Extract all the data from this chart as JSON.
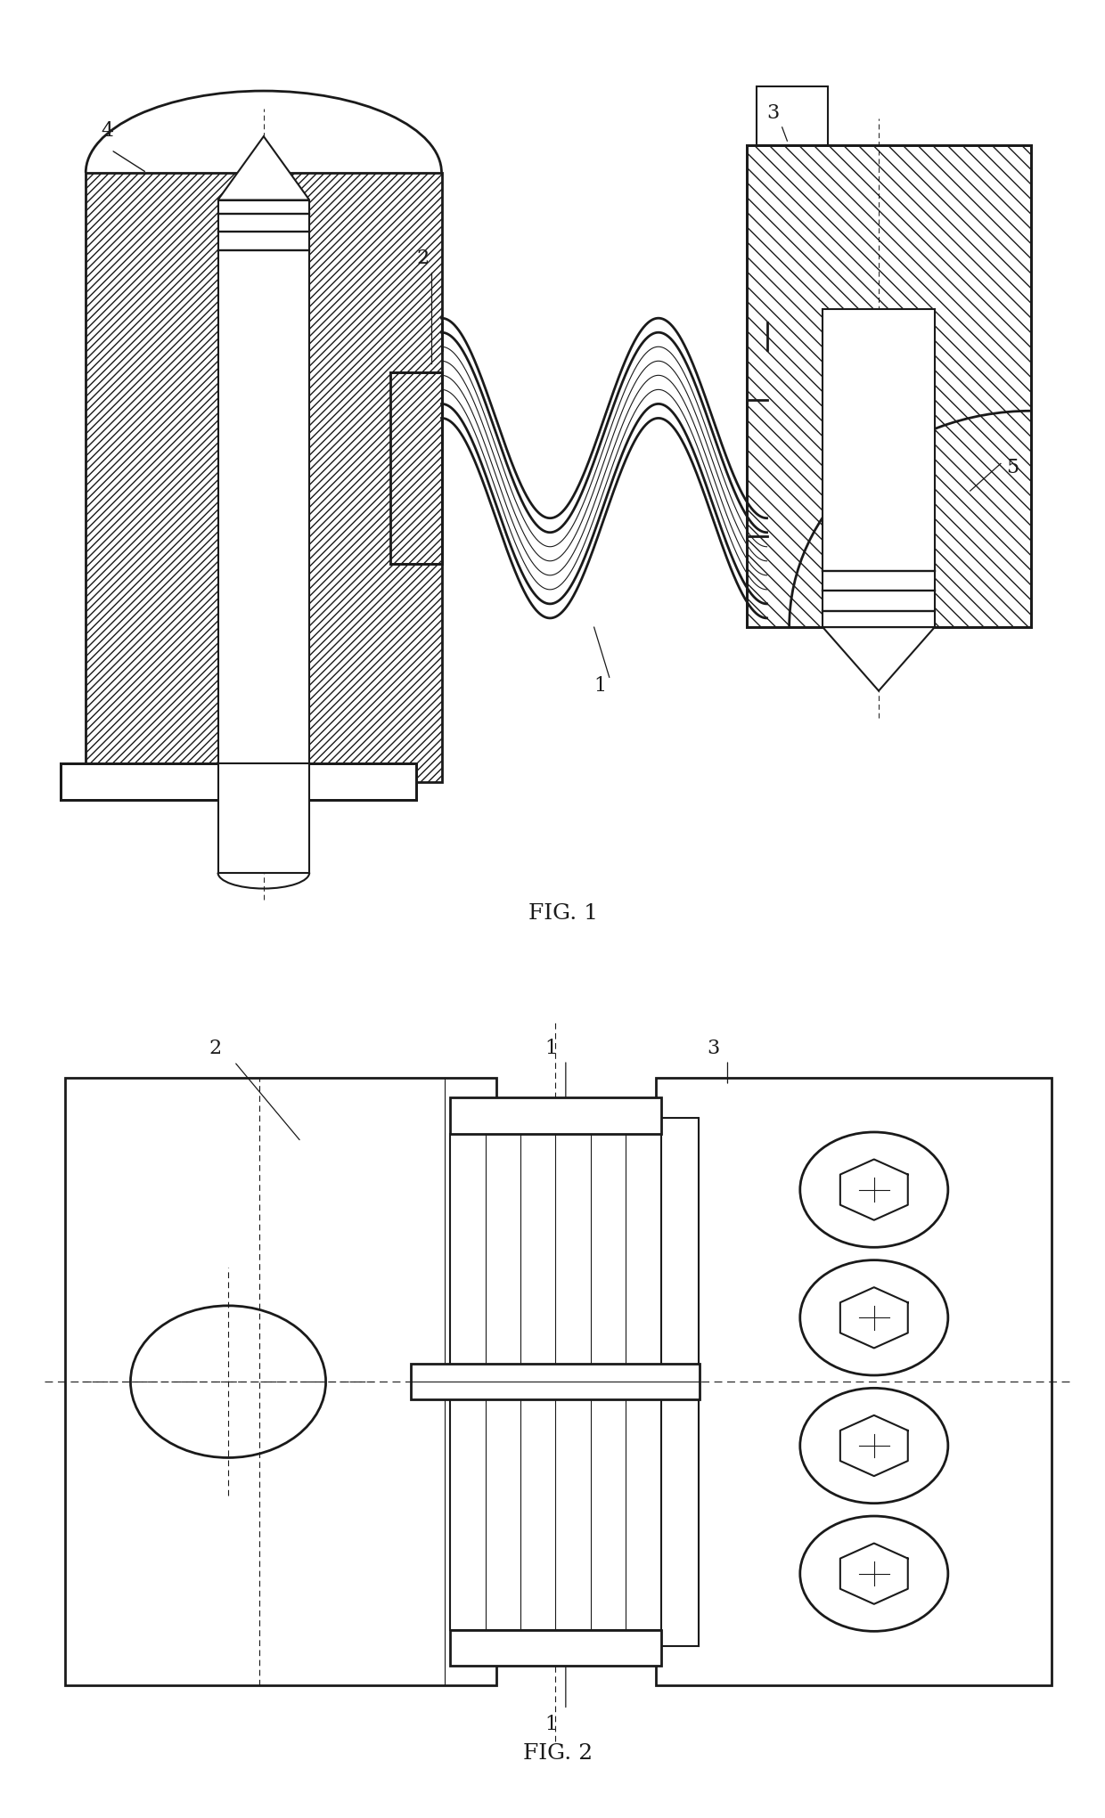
{
  "fig1_label": "FIG. 1",
  "fig2_label": "FIG. 2",
  "bg_color": "#ffffff",
  "line_color": "#1a1a1a",
  "lw_main": 1.5,
  "lw_thick": 2.0,
  "lw_thin": 0.8,
  "font_size_labels": 16,
  "font_size_fig": 18
}
